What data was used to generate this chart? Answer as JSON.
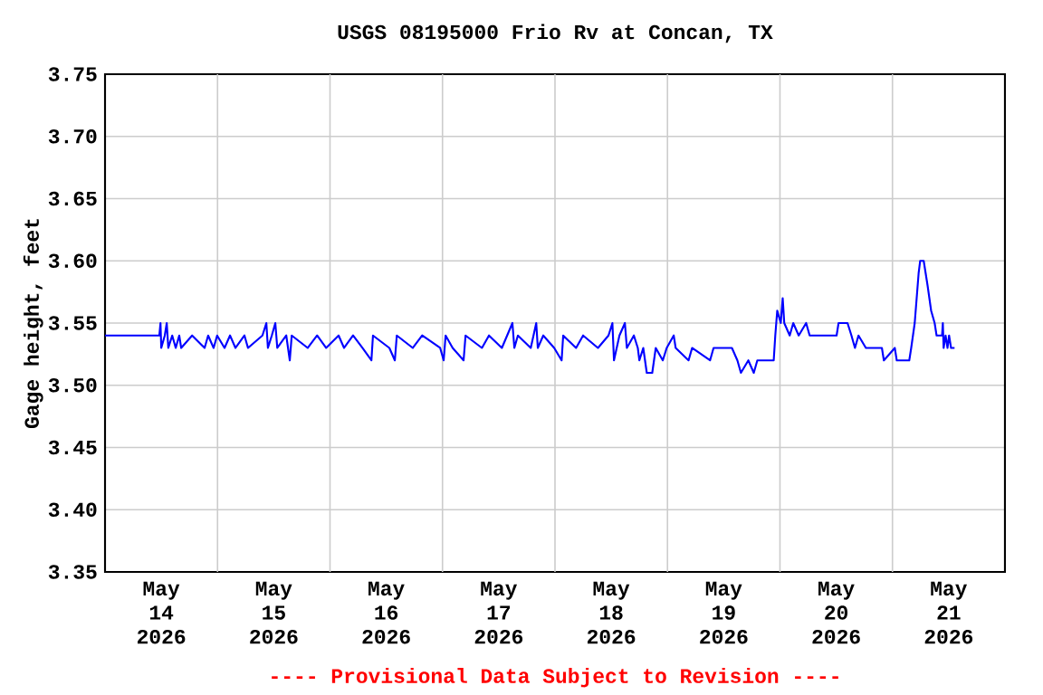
{
  "chart_data": {
    "type": "line",
    "title": "USGS 08195000 Frio Rv at Concan, TX",
    "ylabel": "Gage height, feet",
    "annotations": [
      "---- Provisional Data Subject to Revision ----"
    ],
    "xlim": [
      "2026-05-14T00:00",
      "2026-05-22T00:00"
    ],
    "xticks": [
      {
        "value": "2026-05-14T12:00",
        "label": "May 14 2026"
      },
      {
        "value": "2026-05-15T12:00",
        "label": "May 15 2026"
      },
      {
        "value": "2026-05-16T12:00",
        "label": "May 16 2026"
      },
      {
        "value": "2026-05-17T12:00",
        "label": "May 17 2026"
      },
      {
        "value": "2026-05-18T12:00",
        "label": "May 18 2026"
      },
      {
        "value": "2026-05-19T12:00",
        "label": "May 19 2026"
      },
      {
        "value": "2026-05-20T12:00",
        "label": "May 20 2026"
      },
      {
        "value": "2026-05-21T12:00",
        "label": "May 21 2026"
      },
      {
        "value": "2026-05-15T00:00",
        "label": null
      },
      {
        "value": "2026-05-16T00:00",
        "label": null
      },
      {
        "value": "2026-05-17T00:00",
        "label": null
      },
      {
        "value": "2026-05-18T00:00",
        "label": null
      },
      {
        "value": "2026-05-19T00:00",
        "label": null
      },
      {
        "value": "2026-05-20T00:00",
        "label": null
      },
      {
        "value": "2026-05-21T00:00",
        "label": null
      }
    ],
    "ylim": [
      3.35,
      3.75
    ],
    "yticks": [
      3.35,
      {
        "value": 3.4,
        "label": "3.40"
      },
      3.45,
      {
        "value": 3.5,
        "label": "3.50"
      },
      3.55,
      {
        "value": 3.6,
        "label": "3.60"
      },
      3.65,
      {
        "value": 3.7,
        "label": "3.70"
      },
      3.75
    ],
    "grid": true,
    "marker": "none",
    "line_style": "solid",
    "series": [
      {
        "color": "#0000ff",
        "x": [
          "2026-05-14T00:00",
          "2026-05-14T11:35",
          "2026-05-14T11:50",
          "2026-05-14T12:00",
          "2026-05-14T12:45",
          "2026-05-14T13:10",
          "2026-05-14T13:30",
          "2026-05-14T14:20",
          "2026-05-14T15:05",
          "2026-05-14T15:50",
          "2026-05-14T16:15",
          "2026-05-14T18:35",
          "2026-05-14T21:15",
          "2026-05-14T22:00",
          "2026-05-14T23:10",
          "2026-05-14T23:55",
          "2026-05-15T01:30",
          "2026-05-15T02:40",
          "2026-05-15T03:50",
          "2026-05-15T05:45",
          "2026-05-15T06:30",
          "2026-05-15T09:35",
          "2026-05-15T10:25",
          "2026-05-15T10:45",
          "2026-05-15T11:35",
          "2026-05-15T12:20",
          "2026-05-15T12:45",
          "2026-05-15T14:40",
          "2026-05-15T15:25",
          "2026-05-15T15:50",
          "2026-05-15T19:15",
          "2026-05-15T21:15",
          "2026-05-15T23:10",
          "2026-05-16T01:50",
          "2026-05-16T03:00",
          "2026-05-16T04:55",
          "2026-05-16T06:55",
          "2026-05-16T08:50",
          "2026-05-16T09:10",
          "2026-05-16T12:40",
          "2026-05-16T13:50",
          "2026-05-16T14:15",
          "2026-05-16T17:40",
          "2026-05-16T19:40",
          "2026-05-16T23:30",
          "2026-05-17T00:15",
          "2026-05-17T00:40",
          "2026-05-17T02:10",
          "2026-05-17T04:30",
          "2026-05-17T04:55",
          "2026-05-17T08:25",
          "2026-05-17T09:55",
          "2026-05-17T12:40",
          "2026-05-17T14:55",
          "2026-05-17T15:20",
          "2026-05-17T16:05",
          "2026-05-17T18:50",
          "2026-05-17T20:00",
          "2026-05-17T20:20",
          "2026-05-17T21:30",
          "2026-05-17T23:50",
          "2026-05-18T01:25",
          "2026-05-18T01:45",
          "2026-05-18T04:30",
          "2026-05-18T06:00",
          "2026-05-18T09:10",
          "2026-05-18T11:25",
          "2026-05-18T12:15",
          "2026-05-18T12:35",
          "2026-05-18T13:45",
          "2026-05-18T14:55",
          "2026-05-18T15:20",
          "2026-05-18T16:50",
          "2026-05-18T17:40",
          "2026-05-18T18:00",
          "2026-05-18T18:50",
          "2026-05-18T19:35",
          "2026-05-18T20:45",
          "2026-05-18T21:30",
          "2026-05-18T23:00",
          "2026-05-18T23:50",
          "2026-05-19T01:20",
          "2026-05-19T01:45",
          "2026-05-19T04:30",
          "2026-05-19T05:15",
          "2026-05-19T09:05",
          "2026-05-19T09:50",
          "2026-05-19T13:45",
          "2026-05-19T14:55",
          "2026-05-19T15:40",
          "2026-05-19T17:15",
          "2026-05-19T18:25",
          "2026-05-19T19:10",
          "2026-05-19T22:40",
          "2026-05-19T23:00",
          "2026-05-19T23:25",
          "2026-05-20T00:10",
          "2026-05-20T00:35",
          "2026-05-20T00:55",
          "2026-05-20T02:05",
          "2026-05-20T02:50",
          "2026-05-20T04:00",
          "2026-05-20T05:35",
          "2026-05-20T06:20",
          "2026-05-20T12:05",
          "2026-05-20T12:30",
          "2026-05-20T14:25",
          "2026-05-20T15:15",
          "2026-05-20T16:00",
          "2026-05-20T16:45",
          "2026-05-20T18:20",
          "2026-05-20T21:45",
          "2026-05-20T22:10",
          "2026-05-21T00:30",
          "2026-05-21T00:55",
          "2026-05-21T03:35",
          "2026-05-21T04:00",
          "2026-05-21T04:45",
          "2026-05-21T05:35",
          "2026-05-21T05:55",
          "2026-05-21T06:40",
          "2026-05-21T07:05",
          "2026-05-21T07:30",
          "2026-05-21T08:15",
          "2026-05-21T09:00",
          "2026-05-21T09:25",
          "2026-05-21T10:35",
          "2026-05-21T10:45",
          "2026-05-21T10:55",
          "2026-05-21T11:20",
          "2026-05-21T11:45",
          "2026-05-21T12:05",
          "2026-05-21T12:30",
          "2026-05-21T13:15"
        ],
        "values": [
          3.54,
          3.54,
          3.55,
          3.53,
          3.54,
          3.55,
          3.53,
          3.54,
          3.53,
          3.54,
          3.53,
          3.54,
          3.53,
          3.54,
          3.53,
          3.54,
          3.53,
          3.54,
          3.53,
          3.54,
          3.53,
          3.54,
          3.55,
          3.53,
          3.54,
          3.55,
          3.53,
          3.54,
          3.52,
          3.54,
          3.53,
          3.54,
          3.53,
          3.54,
          3.53,
          3.54,
          3.53,
          3.52,
          3.54,
          3.53,
          3.52,
          3.54,
          3.53,
          3.54,
          3.53,
          3.52,
          3.54,
          3.53,
          3.52,
          3.54,
          3.53,
          3.54,
          3.53,
          3.55,
          3.53,
          3.54,
          3.53,
          3.55,
          3.53,
          3.54,
          3.53,
          3.52,
          3.54,
          3.53,
          3.54,
          3.53,
          3.54,
          3.55,
          3.52,
          3.54,
          3.55,
          3.53,
          3.54,
          3.53,
          3.52,
          3.53,
          3.51,
          3.51,
          3.53,
          3.52,
          3.53,
          3.54,
          3.53,
          3.52,
          3.53,
          3.52,
          3.53,
          3.53,
          3.52,
          3.51,
          3.52,
          3.51,
          3.52,
          3.52,
          3.54,
          3.56,
          3.55,
          3.57,
          3.55,
          3.54,
          3.55,
          3.54,
          3.55,
          3.54,
          3.54,
          3.55,
          3.55,
          3.54,
          3.53,
          3.54,
          3.53,
          3.53,
          3.52,
          3.53,
          3.52,
          3.52,
          3.53,
          3.55,
          3.59,
          3.6,
          3.6,
          3.59,
          3.58,
          3.56,
          3.55,
          3.54,
          3.54,
          3.55,
          3.53,
          3.54,
          3.53,
          3.54,
          3.53,
          3.53
        ]
      }
    ]
  }
}
